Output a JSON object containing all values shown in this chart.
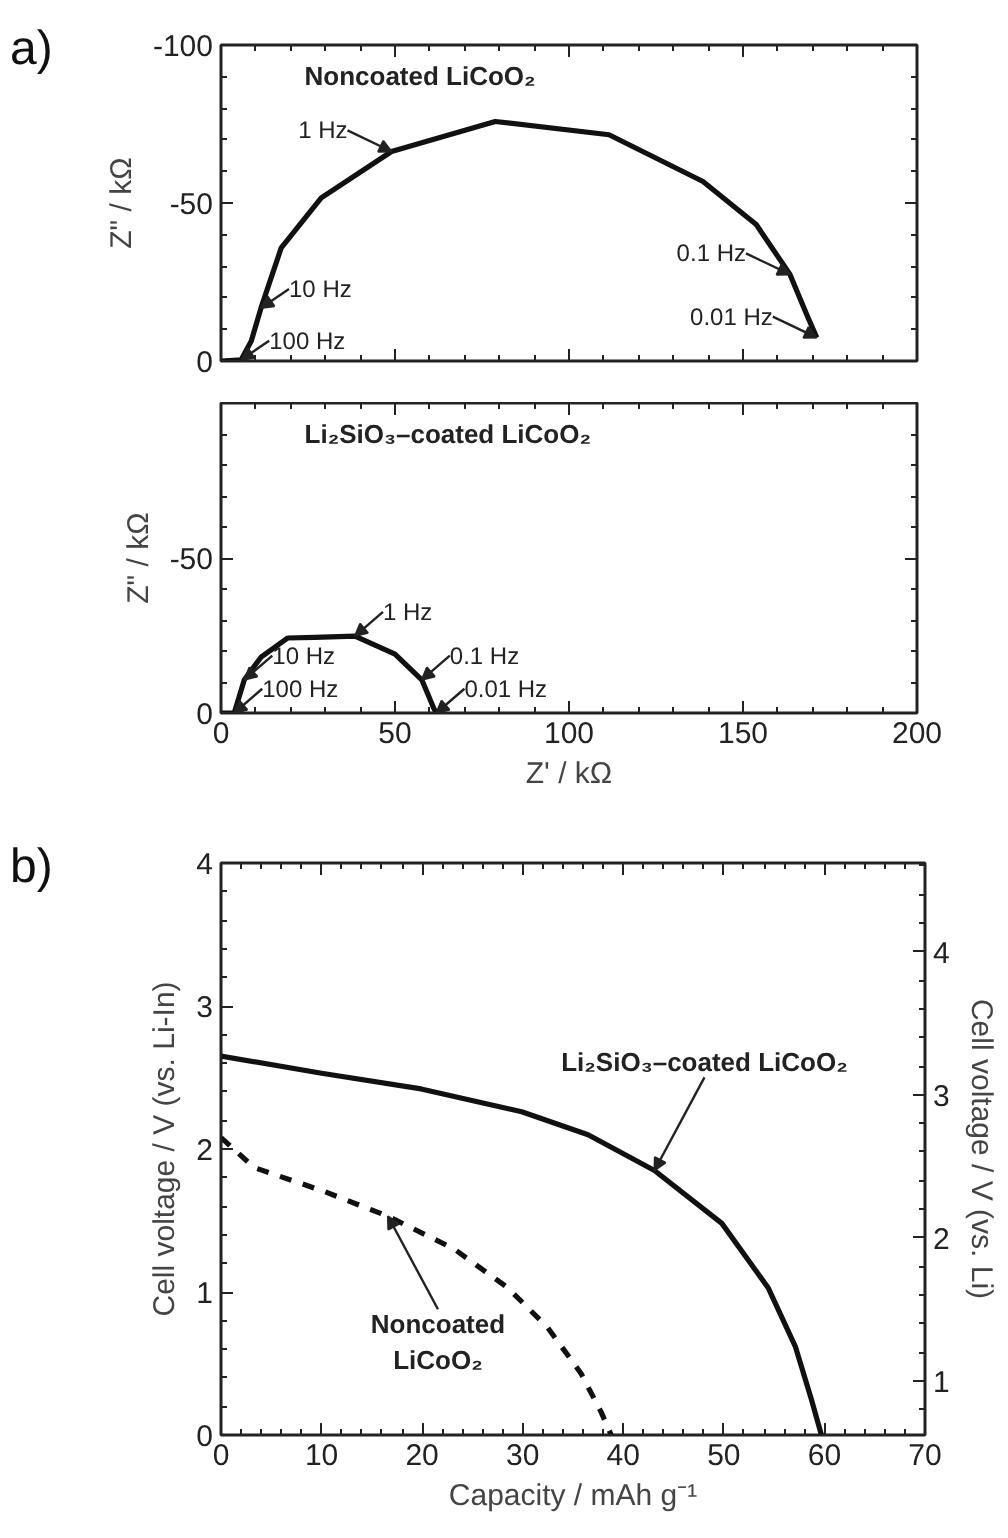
{
  "chart_data": [
    {
      "type": "line",
      "title": "Noncoated LiCoO₂",
      "ylabel": "Z\" / kΩ",
      "xlim": [
        0,
        200
      ],
      "ylim": [
        0,
        -100
      ],
      "xticks": [
        0,
        50,
        100,
        150,
        200
      ],
      "yticks": [
        -100,
        -50,
        0
      ],
      "tick_labels": "y",
      "grid": false,
      "series": [
        {
          "color": "#111111",
          "x": [
            0,
            5.8,
            8.7,
            11.5,
            17.3,
            28.8,
            49,
            78.8,
            111.5,
            138.5,
            153.8,
            163.5,
            168.3,
            171.2
          ],
          "values": [
            0,
            -0.4,
            -6.3,
            -16.8,
            -35.8,
            -51.6,
            -66.3,
            -75.8,
            -71.6,
            -56.8,
            -43.2,
            -27.4,
            -14.7,
            -7.4
          ]
        }
      ],
      "annotations": [
        "a)",
        {
          "text": "1 Hz",
          "x": 49,
          "y": -66.3
        },
        {
          "text": "10 Hz",
          "x": 11.5,
          "y": -16.8
        },
        {
          "text": "100 Hz",
          "x": 5.8,
          "y": -0.4
        },
        {
          "text": "0.1 Hz",
          "x": 163.5,
          "y": -27.4
        },
        {
          "text": "0.01 Hz",
          "x": 171.2,
          "y": -7.4
        }
      ]
    },
    {
      "type": "line",
      "title": "Li₂SiO₃–coated LiCoO₂",
      "xlabel": "Z' / kΩ",
      "ylabel": "Z\" / kΩ",
      "xlim": [
        0,
        200
      ],
      "ylim": [
        0,
        -100
      ],
      "xticks": [
        0,
        50,
        100,
        150,
        200
      ],
      "yticks": [
        {
          "value": -100,
          "label": null
        },
        -50,
        0
      ],
      "grid": false,
      "series": [
        {
          "color": "#111111",
          "x": [
            0,
            3.8,
            6.7,
            11.5,
            19.2,
            26.9,
            38.5,
            50,
            57.7,
            61.2,
            61.9
          ],
          "values": [
            0,
            0,
            -10.7,
            -18,
            -24.2,
            -24.4,
            -24.8,
            -19,
            -10.7,
            -1.4,
            0
          ]
        }
      ],
      "annotations": [
        {
          "text": "10 Hz",
          "x": 6.7,
          "y": -10.7
        },
        {
          "text": "100 Hz",
          "x": 3.8,
          "y": 0
        },
        {
          "text": "1 Hz",
          "x": 38.5,
          "y": -24.8
        },
        {
          "text": "0.1 Hz",
          "x": 57.7,
          "y": -10.7
        },
        {
          "text": "0.01 Hz",
          "x": 61.9,
          "y": 0
        }
      ]
    },
    {
      "type": "line",
      "xlabel": "Capacity / mAh g⁻¹",
      "ylabel": "Cell voltage / V (vs. Li-In)",
      "y2label": "Cell voltage / V (vs. Li)",
      "xlim": [
        0,
        70
      ],
      "ylim": [
        0,
        4
      ],
      "y2lim": [
        0.62,
        4.62
      ],
      "xticks": [
        0,
        10,
        20,
        30,
        40,
        50,
        60,
        70
      ],
      "yticks": [
        0,
        1,
        2,
        3,
        4
      ],
      "y2ticks": [
        1,
        2,
        3,
        4
      ],
      "grid": false,
      "series": [
        {
          "color": "#111111",
          "line_style": "solid",
          "x": [
            0,
            10,
            19.9,
            29.9,
            36.5,
            43.1,
            49.8,
            54.4,
            57.1,
            58.7,
            59.7
          ],
          "values": [
            2.65,
            2.53,
            2.42,
            2.26,
            2.1,
            1.85,
            1.48,
            1.03,
            0.62,
            0.25,
            0
          ]
        },
        {
          "color": "#111111",
          "line_style": "dashed",
          "x": [
            0,
            3.3,
            10,
            16.6,
            23.2,
            28.5,
            32.5,
            35.8,
            37.8,
            38.8
          ],
          "values": [
            2.08,
            1.87,
            1.71,
            1.53,
            1.3,
            1.03,
            0.75,
            0.43,
            0.16,
            0
          ]
        }
      ],
      "annotations": [
        "b)",
        {
          "text": "Li₂SiO₃–coated LiCoO₂",
          "x": 43.1,
          "y": 1.85
        },
        {
          "text": "Noncoated\nLiCoO₂",
          "x": 16.6,
          "y": 1.53
        }
      ]
    }
  ]
}
